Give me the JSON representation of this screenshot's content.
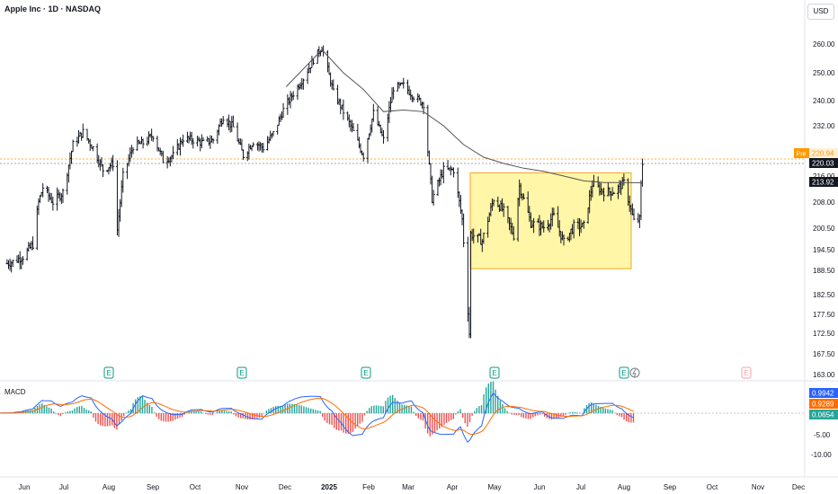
{
  "header": {
    "title": "Apple Inc · 1D · NASDAQ",
    "currency": "USD"
  },
  "macd_pane": {
    "label": "MACD"
  },
  "chart_data": {
    "type": "ohlc",
    "y_ticks": [
      260.0,
      250.0,
      240.0,
      232.0,
      216.0,
      208.0,
      200.5,
      194.5,
      188.5,
      182.5,
      177.5,
      172.5,
      167.5,
      163.0
    ],
    "x_ticks": [
      "Jun",
      "Jul",
      "Aug",
      "Sep",
      "Oct",
      "Nov",
      "Dec",
      "2025",
      "Feb",
      "Mar",
      "Apr",
      "May",
      "Jun",
      "Jul",
      "Aug",
      "Sep",
      "Oct",
      "Nov",
      "Dec"
    ],
    "price_labels": {
      "pre": {
        "tag": "Pre",
        "value": "220.94",
        "color": "#ff9800"
      },
      "last": {
        "value": "220.03",
        "color": "#131722"
      },
      "ma": {
        "value": "213.92",
        "color": "#131722"
      }
    },
    "macd_labels": [
      {
        "value": "0.9942",
        "color": "#2962ff"
      },
      {
        "value": "0.9289",
        "color": "#ff6d00"
      },
      {
        "value": "0.0654",
        "color": "#26a69a"
      }
    ],
    "macd_ticks": [
      "-5.00",
      "-10.00"
    ],
    "earnings_markers": [
      "E",
      "E",
      "E",
      "E",
      "E",
      "E"
    ],
    "range_box": {
      "from_price": 189.0,
      "to_price": 217.0,
      "color": "#ffeb3b"
    },
    "close_path": [
      [
        "2024-05-20",
        190.5
      ],
      [
        "2024-05-24",
        191.0
      ],
      [
        "2024-05-31",
        192.5
      ],
      [
        "2024-06-07",
        196.0
      ],
      [
        "2024-06-11",
        208.0
      ],
      [
        "2024-06-14",
        212.5
      ],
      [
        "2024-06-21",
        208.0
      ],
      [
        "2024-06-28",
        211.0
      ],
      [
        "2024-07-05",
        226.0
      ],
      [
        "2024-07-12",
        230.0
      ],
      [
        "2024-07-19",
        225.0
      ],
      [
        "2024-07-26",
        218.0
      ],
      [
        "2024-08-02",
        220.0
      ],
      [
        "2024-08-05",
        200.0
      ],
      [
        "2024-08-09",
        216.0
      ],
      [
        "2024-08-16",
        225.5
      ],
      [
        "2024-08-23",
        226.5
      ],
      [
        "2024-08-30",
        229.0
      ],
      [
        "2024-09-06",
        221.0
      ],
      [
        "2024-09-13",
        222.5
      ],
      [
        "2024-09-20",
        228.0
      ],
      [
        "2024-09-27",
        227.5
      ],
      [
        "2024-10-04",
        226.5
      ],
      [
        "2024-10-11",
        227.5
      ],
      [
        "2024-10-18",
        235.0
      ],
      [
        "2024-10-25",
        231.5
      ],
      [
        "2024-11-01",
        222.5
      ],
      [
        "2024-11-08",
        227.0
      ],
      [
        "2024-11-15",
        225.0
      ],
      [
        "2024-11-22",
        229.5
      ],
      [
        "2024-11-29",
        237.0
      ],
      [
        "2024-12-06",
        242.5
      ],
      [
        "2024-12-13",
        248.0
      ],
      [
        "2024-12-20",
        254.5
      ],
      [
        "2024-12-26",
        259.0
      ],
      [
        "2025-01-03",
        243.0
      ],
      [
        "2025-01-10",
        236.5
      ],
      [
        "2025-01-17",
        230.0
      ],
      [
        "2025-01-24",
        222.5
      ],
      [
        "2025-01-31",
        236.0
      ],
      [
        "2025-02-07",
        227.5
      ],
      [
        "2025-02-14",
        244.5
      ],
      [
        "2025-02-21",
        245.5
      ],
      [
        "2025-02-28",
        241.5
      ],
      [
        "2025-03-07",
        239.0
      ],
      [
        "2025-03-13",
        209.0
      ],
      [
        "2025-03-21",
        218.0
      ],
      [
        "2025-03-28",
        217.9
      ],
      [
        "2025-04-03",
        203.0
      ],
      [
        "2025-04-08",
        172.5
      ],
      [
        "2025-04-09",
        198.9
      ],
      [
        "2025-04-17",
        196.9
      ],
      [
        "2025-04-25",
        209.0
      ],
      [
        "2025-05-02",
        205.4
      ],
      [
        "2025-05-09",
        198.5
      ],
      [
        "2025-05-13",
        212.9
      ],
      [
        "2025-05-21",
        202.0
      ],
      [
        "2025-05-30",
        200.8
      ],
      [
        "2025-06-06",
        203.9
      ],
      [
        "2025-06-13",
        196.5
      ],
      [
        "2025-06-20",
        201.0
      ],
      [
        "2025-06-27",
        201.1
      ],
      [
        "2025-07-03",
        213.5
      ],
      [
        "2025-07-11",
        211.2
      ],
      [
        "2025-07-18",
        211.2
      ],
      [
        "2025-07-25",
        213.9
      ],
      [
        "2025-08-01",
        202.4
      ],
      [
        "2025-08-05",
        203.0
      ],
      [
        "2025-08-06",
        213.2
      ],
      [
        "2025-08-07",
        220.03
      ]
    ],
    "ma_path": [
      [
        "2024-12-01",
        245.0
      ],
      [
        "2024-12-26",
        258.0
      ],
      [
        "2025-01-10",
        250.0
      ],
      [
        "2025-01-24",
        244.0
      ],
      [
        "2025-02-07",
        236.5
      ],
      [
        "2025-02-21",
        237.0
      ],
      [
        "2025-03-07",
        236.5
      ],
      [
        "2025-03-21",
        232.0
      ],
      [
        "2025-04-04",
        226.0
      ],
      [
        "2025-04-18",
        222.0
      ],
      [
        "2025-05-02",
        220.0
      ],
      [
        "2025-05-16",
        218.5
      ],
      [
        "2025-05-30",
        217.5
      ],
      [
        "2025-06-13",
        216.0
      ],
      [
        "2025-06-27",
        214.5
      ],
      [
        "2025-07-11",
        214.0
      ],
      [
        "2025-07-25",
        214.0
      ],
      [
        "2025-08-07",
        213.92
      ]
    ]
  }
}
